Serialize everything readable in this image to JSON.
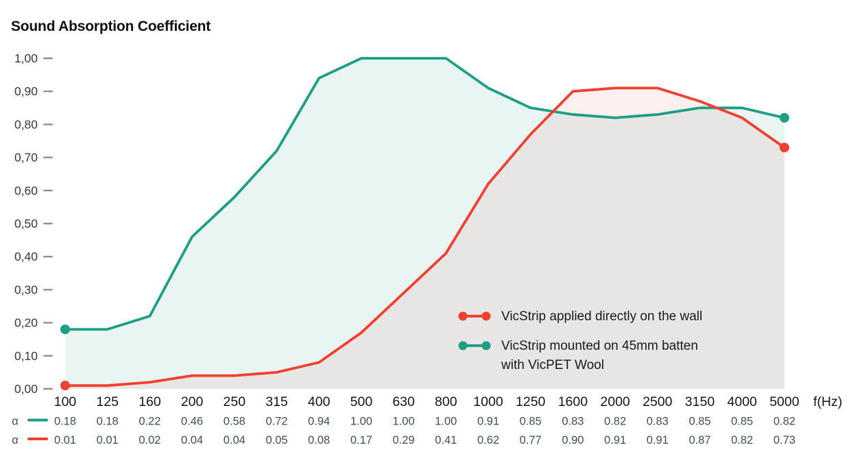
{
  "chart_data": {
    "type": "line",
    "title": "Sound Absorption Coefficient",
    "x_axis_label": "f(Hz)",
    "ylabel": "",
    "ylim": [
      0,
      1
    ],
    "grid": "off",
    "legend_position": "inside-right",
    "row_symbol": "α",
    "y_tick_labels": [
      "1,00",
      "0,90",
      "0,80",
      "0,70",
      "0,60",
      "0,50",
      "0,40",
      "0,30",
      "0,20",
      "0,10",
      "0,00"
    ],
    "categories": [
      "100",
      "125",
      "160",
      "200",
      "250",
      "315",
      "400",
      "500",
      "630",
      "800",
      "1000",
      "1250",
      "1600",
      "2000",
      "2500",
      "3150",
      "4000",
      "5000"
    ],
    "series": [
      {
        "name": "VicStrip mounted on 45mm batten with VicPET Wool",
        "legend_lines": [
          "VicStrip mounted on 45mm batten",
          "with VicPET Wool"
        ],
        "color": "#1D9E85",
        "fill": "rgba(29,158,133,0.10)",
        "values": [
          0.18,
          0.18,
          0.22,
          0.46,
          0.58,
          0.72,
          0.94,
          1.0,
          1.0,
          1.0,
          0.91,
          0.85,
          0.83,
          0.82,
          0.83,
          0.85,
          0.85,
          0.82
        ]
      },
      {
        "name": "VicStrip applied directly on the wall",
        "legend_lines": [
          "VicStrip applied directly on the wall"
        ],
        "color": "#F1402F",
        "fill": "rgba(241,64,47,0.08)",
        "values": [
          0.01,
          0.01,
          0.02,
          0.04,
          0.04,
          0.05,
          0.08,
          0.17,
          0.29,
          0.41,
          0.62,
          0.77,
          0.9,
          0.91,
          0.91,
          0.87,
          0.82,
          0.73
        ]
      }
    ],
    "legend_order": [
      1,
      0
    ],
    "table_row_order": [
      0,
      1
    ]
  }
}
